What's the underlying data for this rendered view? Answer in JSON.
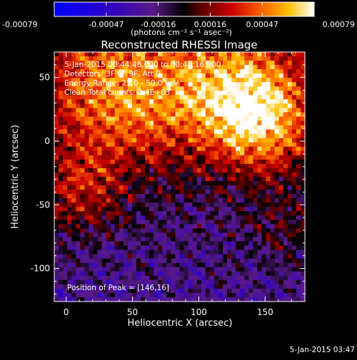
{
  "chart_data": {
    "type": "heatmap",
    "title": "Reconstructed RHESSI Image",
    "xlabel": "Heliocentric X (arcsec)",
    "ylabel": "Heliocentric Y (arcsec)",
    "xlim": [
      -9,
      180
    ],
    "ylim": [
      -126,
      70
    ],
    "x_ticks": [
      0,
      50,
      100,
      150
    ],
    "y_ticks": [
      50,
      0,
      -50,
      -100
    ],
    "colorbar": {
      "min": -0.00079,
      "max": 0.00079,
      "ticks": [
        "-0.00079",
        "-0.00047",
        "-0.00016",
        "0.00016",
        "0.00047",
        "0.00079"
      ],
      "unit_label": "(photons cm⁻² s⁻¹ asec⁻²)"
    },
    "annotations": [
      "5-Jan-2015 00:44:48.000 to 00:48:16.000",
      "Detectors: 3F 6F 9F, Att 0",
      "Energy Range: 25.0 - 50.0 keV",
      "Clean    Total counts: 2.4E+03"
    ],
    "peak_label": "Position of Peak = [146,16]",
    "peak_position": [
      146,
      16
    ]
  },
  "footer_timestamp": "5-Jan-2015 03:47",
  "colors": {
    "background": "#000000",
    "text": "#ffffff"
  }
}
